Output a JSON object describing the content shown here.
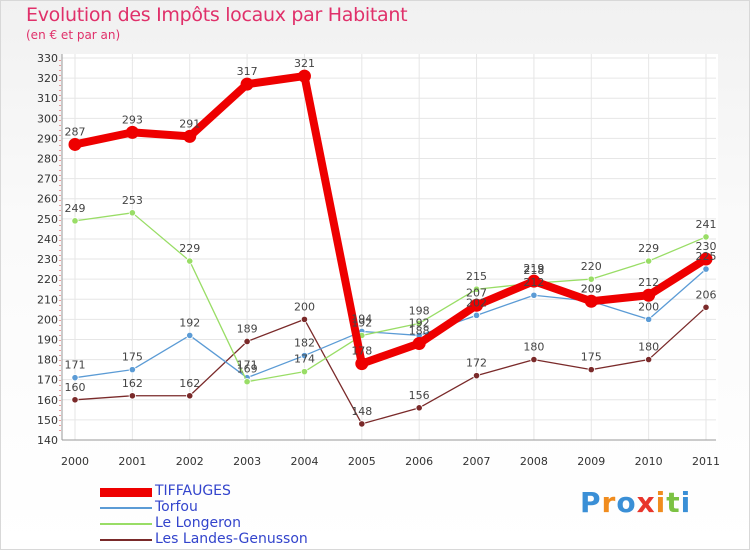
{
  "chart_data": {
    "type": "line",
    "title": "Evolution des Impôts locaux par Habitant",
    "subtitle": "(en € et par an)",
    "x": [
      "2000",
      "2001",
      "2002",
      "2003",
      "2004",
      "2005",
      "2006",
      "2007",
      "2008",
      "2009",
      "2010",
      "2011"
    ],
    "ylim": [
      140,
      330
    ],
    "yticks": [
      140,
      150,
      160,
      170,
      180,
      190,
      200,
      210,
      220,
      230,
      240,
      250,
      260,
      270,
      280,
      290,
      300,
      310,
      320,
      330
    ],
    "grid": true,
    "legend_position": "bottom-left",
    "series": [
      {
        "name": "TIFFAUGES",
        "color": "#ee0000",
        "values": [
          287,
          293,
          291,
          317,
          321,
          178,
          188,
          207,
          219,
          209,
          212,
          230
        ]
      },
      {
        "name": "Torfou",
        "color": "#5b9bd5",
        "values": [
          171,
          175,
          192,
          171,
          182,
          194,
          192,
          202,
          212,
          209,
          200,
          225
        ]
      },
      {
        "name": "Le Longeron",
        "color": "#99dd66",
        "values": [
          249,
          253,
          229,
          169,
          174,
          192,
          198,
          215,
          218,
          220,
          229,
          241
        ]
      },
      {
        "name": "Les Landes-Genusson",
        "color": "#7a2a2a",
        "values": [
          160,
          162,
          162,
          189,
          200,
          148,
          156,
          172,
          180,
          175,
          180,
          206
        ]
      }
    ]
  },
  "logo": {
    "letters": [
      "P",
      "r",
      "o",
      "x",
      "i",
      "t",
      "i"
    ],
    "colors": [
      "#3a8fd6",
      "#f08c1e",
      "#3a8fd6",
      "#e8352b",
      "#f08c1e",
      "#7cc243",
      "#3a8fd6"
    ]
  }
}
